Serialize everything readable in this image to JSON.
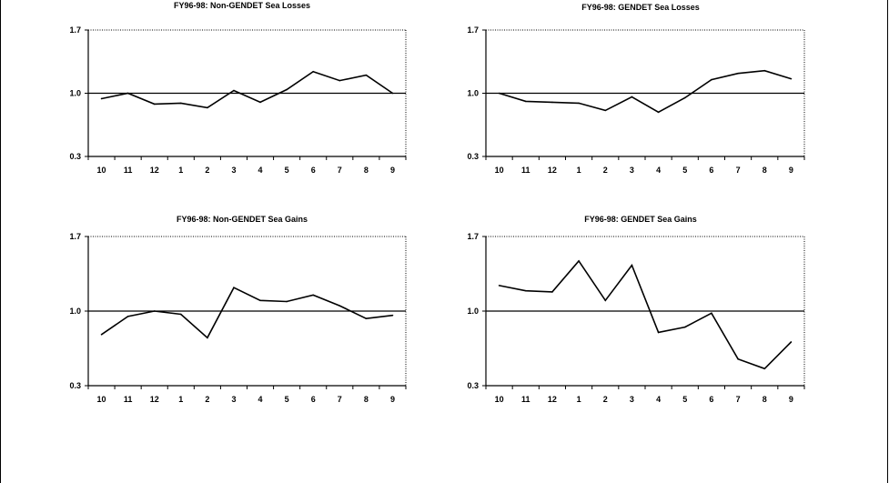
{
  "chart_data": [
    {
      "type": "line",
      "title": "FY96-98: Non-GENDET Sea Losses",
      "categories": [
        "10",
        "11",
        "12",
        "1",
        "2",
        "3",
        "4",
        "5",
        "6",
        "7",
        "8",
        "9"
      ],
      "values": [
        0.94,
        1.0,
        0.88,
        0.89,
        0.84,
        1.03,
        0.9,
        1.04,
        1.24,
        1.14,
        1.2,
        1.0
      ],
      "reference_line": 1.0,
      "yticks": [
        "0.3",
        "1.0",
        "1.7"
      ],
      "ylim": [
        0.3,
        1.7
      ],
      "grid": false,
      "color": "#000000"
    },
    {
      "type": "line",
      "title": "FY96-98: GENDET Sea Losses",
      "categories": [
        "10",
        "11",
        "12",
        "1",
        "2",
        "3",
        "4",
        "5",
        "6",
        "7",
        "8",
        "9"
      ],
      "values": [
        1.0,
        0.91,
        0.9,
        0.89,
        0.81,
        0.96,
        0.79,
        0.95,
        1.15,
        1.22,
        1.25,
        1.16
      ],
      "reference_line": 1.0,
      "yticks": [
        "0.3",
        "1.0",
        "1.7"
      ],
      "ylim": [
        0.3,
        1.7
      ],
      "grid": false,
      "color": "#000000"
    },
    {
      "type": "line",
      "title": "FY96-98: Non-GENDET Sea Gains",
      "categories": [
        "10",
        "11",
        "12",
        "1",
        "2",
        "3",
        "4",
        "5",
        "6",
        "7",
        "8",
        "9"
      ],
      "values": [
        0.78,
        0.95,
        1.0,
        0.97,
        0.75,
        1.22,
        1.1,
        1.09,
        1.15,
        1.05,
        0.93,
        0.96
      ],
      "reference_line": 1.0,
      "yticks": [
        "0.3",
        "1.0",
        "1.7"
      ],
      "ylim": [
        0.3,
        1.7
      ],
      "grid": false,
      "color": "#000000"
    },
    {
      "type": "line",
      "title": "FY96-98: GENDET Sea Gains",
      "categories": [
        "10",
        "11",
        "12",
        "1",
        "2",
        "3",
        "4",
        "5",
        "6",
        "7",
        "8",
        "9"
      ],
      "values": [
        1.24,
        1.19,
        1.18,
        1.47,
        1.1,
        1.43,
        0.8,
        0.85,
        0.98,
        0.55,
        0.46,
        0.71
      ],
      "reference_line": 1.0,
      "yticks": [
        "0.3",
        "1.0",
        "1.7"
      ],
      "ylim": [
        0.3,
        1.7
      ],
      "grid": false,
      "color": "#000000"
    }
  ]
}
